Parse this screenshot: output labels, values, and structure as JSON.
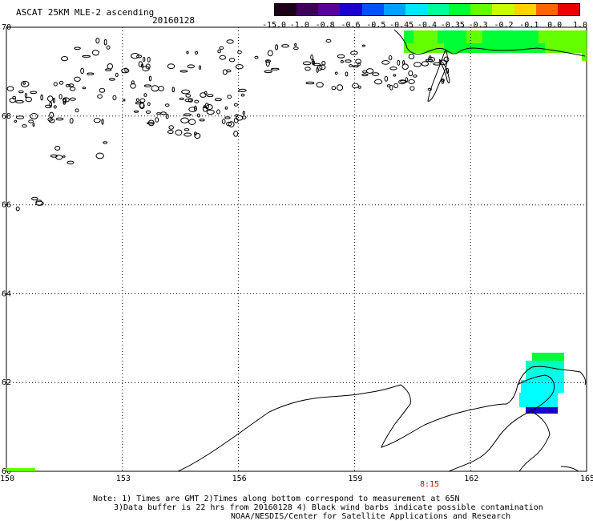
{
  "header": {
    "title": "ASCAT 25KM MLE-2 ascending",
    "date": "20160128"
  },
  "colorbar": {
    "labels": [
      "-15.0",
      "-1.0",
      "-0.8",
      "-0.6",
      "-0.5",
      "-0.45",
      "-0.4",
      "-0.35",
      "-0.3",
      "-0.2",
      "-0.1",
      "0.0",
      "1.0"
    ],
    "colors": [
      "#1a0018",
      "#3c005c",
      "#5a0096",
      "#1a00c8",
      "#0050ff",
      "#00a0ff",
      "#00e6ff",
      "#00ff96",
      "#00ff32",
      "#64ff00",
      "#c8ff00",
      "#ffd200",
      "#ff6400",
      "#e60000"
    ]
  },
  "axes": {
    "lat_labels": [
      "70",
      "68",
      "66",
      "64",
      "62",
      "60"
    ],
    "lon_labels": [
      "150",
      "153",
      "156",
      "159",
      "162",
      "165"
    ]
  },
  "time_label": "8:15",
  "notes": [
    "Note: 1) Times are GMT 2)Times along bottom correspond to measurement at 65N",
    "3)Data buffer is 22 hrs from 20160128 4) Black wind barbs indicate possible contamination",
    "NOAA/NESDIS/Center for Satellite Applications and Research"
  ],
  "data_colors": {
    "green": "#00ff32",
    "lightgreen": "#64ff00",
    "yellowgreen": "#96ff00",
    "cyan": "#00ffe6",
    "aqua": "#00ffff",
    "teal": "#00ffc8",
    "blue": "#1a00c8"
  }
}
